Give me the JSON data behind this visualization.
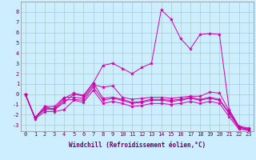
{
  "bg_color": "#cceeff",
  "grid_color": "#aacccc",
  "line_color": "#cc00aa",
  "xlim": [
    -0.5,
    23.5
  ],
  "ylim": [
    -3.6,
    9.0
  ],
  "xticks": [
    0,
    1,
    2,
    3,
    4,
    5,
    6,
    7,
    8,
    9,
    10,
    11,
    12,
    13,
    14,
    15,
    16,
    17,
    18,
    19,
    20,
    21,
    22,
    23
  ],
  "yticks": [
    -3,
    -2,
    -1,
    0,
    1,
    2,
    3,
    4,
    5,
    6,
    7,
    8
  ],
  "xlabel": "Windchill (Refroidissement éolien,°C)",
  "lines": [
    {
      "x": [
        0,
        1,
        2,
        3,
        4,
        5,
        6,
        7,
        8,
        9,
        10,
        11,
        12,
        13,
        14,
        15,
        16,
        17,
        18,
        19,
        20,
        21,
        22,
        23
      ],
      "y": [
        0.0,
        -2.3,
        -1.2,
        -1.2,
        -0.3,
        -0.3,
        -0.4,
        0.9,
        0.7,
        0.8,
        -0.3,
        -0.5,
        -0.4,
        -0.3,
        -0.3,
        -0.4,
        -0.3,
        -0.2,
        -0.2,
        0.2,
        0.1,
        -1.6,
        -3.2,
        -3.4
      ]
    },
    {
      "x": [
        0,
        1,
        2,
        3,
        4,
        5,
        6,
        7,
        8,
        9,
        10,
        11,
        12,
        13,
        14,
        15,
        16,
        17,
        18,
        19,
        20,
        21,
        22,
        23
      ],
      "y": [
        0.0,
        -2.3,
        -1.5,
        -1.5,
        -0.6,
        -0.5,
        -0.6,
        0.7,
        -0.6,
        -0.4,
        -0.6,
        -0.9,
        -0.8,
        -0.6,
        -0.6,
        -0.7,
        -0.6,
        -0.4,
        -0.6,
        -0.4,
        -0.6,
        -1.9,
        -3.3,
        -3.5
      ]
    },
    {
      "x": [
        0,
        1,
        2,
        3,
        4,
        5,
        6,
        7,
        8,
        9,
        10,
        11,
        12,
        13,
        14,
        15,
        16,
        17,
        18,
        19,
        20,
        21,
        22,
        23
      ],
      "y": [
        0.0,
        -2.3,
        -1.4,
        -1.4,
        -0.4,
        0.1,
        -0.1,
        1.1,
        -0.4,
        -0.3,
        -0.5,
        -0.8,
        -0.7,
        -0.5,
        -0.5,
        -0.6,
        -0.5,
        -0.3,
        -0.5,
        -0.3,
        -0.5,
        -1.8,
        -3.2,
        -3.4
      ]
    },
    {
      "x": [
        0,
        1,
        2,
        3,
        4,
        5,
        6,
        7,
        8,
        9,
        10,
        11,
        12,
        13,
        14,
        15,
        16,
        17,
        18,
        19,
        20,
        21,
        22,
        23
      ],
      "y": [
        0.0,
        -2.4,
        -1.7,
        -1.7,
        -1.5,
        -0.6,
        -0.8,
        0.4,
        -0.9,
        -0.7,
        -0.9,
        -1.2,
        -1.1,
        -0.9,
        -0.9,
        -1.0,
        -0.9,
        -0.7,
        -0.9,
        -0.7,
        -0.9,
        -2.2,
        -3.4,
        -3.5
      ]
    },
    {
      "x": [
        0,
        1,
        2,
        3,
        4,
        5,
        6,
        7,
        8,
        9,
        10,
        11,
        12,
        13,
        14,
        15,
        16,
        17,
        18,
        19,
        20,
        21,
        22,
        23
      ],
      "y": [
        0.0,
        -2.3,
        -1.2,
        -1.5,
        -0.8,
        0.0,
        -0.2,
        1.1,
        2.8,
        3.0,
        2.5,
        2.0,
        2.6,
        3.0,
        8.2,
        7.3,
        5.4,
        4.4,
        5.8,
        5.9,
        5.8,
        -1.5,
        -3.1,
        -3.3
      ]
    }
  ],
  "tick_fontsize": 5,
  "xlabel_fontsize": 5.5
}
